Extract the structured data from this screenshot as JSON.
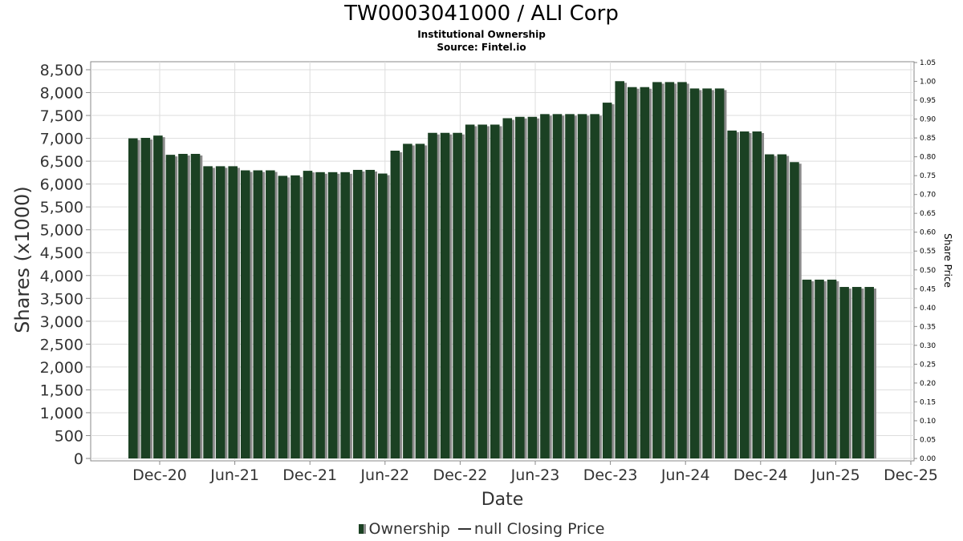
{
  "chart_data": {
    "type": "bar",
    "title": "TW0003041000 / ALI Corp",
    "subtitle_lines": [
      "Institutional Ownership",
      "Source: Fintel.io"
    ],
    "xlabel": "Date",
    "ylabel": "Shares (x1000)",
    "y2label": "Share Price",
    "ylim": [
      0,
      8500
    ],
    "y2lim": [
      0,
      1.05
    ],
    "x_tick_labels": [
      "Dec-20",
      "Jun-21",
      "Dec-21",
      "Jun-22",
      "Dec-22",
      "Jun-23",
      "Dec-23",
      "Jun-24",
      "Dec-24",
      "Jun-25",
      "Dec-25"
    ],
    "y_tick_labels": [
      "0",
      "500",
      "1,000",
      "1,500",
      "2,000",
      "2,500",
      "3,000",
      "3,500",
      "4,000",
      "4,500",
      "5,000",
      "5,500",
      "6,000",
      "6,500",
      "7,000",
      "7,500",
      "8,000",
      "8,500"
    ],
    "y2_tick_labels": [
      "0.00",
      "0.05",
      "0.10",
      "0.15",
      "0.20",
      "0.25",
      "0.30",
      "0.35",
      "0.40",
      "0.45",
      "0.50",
      "0.55",
      "0.60",
      "0.65",
      "0.70",
      "0.75",
      "0.80",
      "0.85",
      "0.90",
      "0.95",
      "1.00",
      "1.05"
    ],
    "grid": true,
    "legend_position": "bottom",
    "colors": {
      "bar": "#1b4123",
      "bar_shadow": "#8a8a8a",
      "grid": "#dddddd",
      "axis": "#888888"
    },
    "series": [
      {
        "name": "Ownership",
        "values": [
          7000,
          7010,
          7060,
          6640,
          6660,
          6660,
          6390,
          6390,
          6390,
          6300,
          6300,
          6300,
          6180,
          6190,
          6290,
          6260,
          6260,
          6260,
          6310,
          6310,
          6230,
          6730,
          6880,
          6880,
          7120,
          7120,
          7120,
          7300,
          7300,
          7300,
          7440,
          7470,
          7470,
          7530,
          7530,
          7530,
          7530,
          7530,
          7780,
          8250,
          8120,
          8120,
          8230,
          8230,
          8230,
          8090,
          8090,
          8090,
          7170,
          7150,
          7150,
          6650,
          6650,
          6480,
          3910,
          3910,
          3910,
          3750,
          3750,
          3750
        ]
      }
    ],
    "legend": {
      "ownership_label": "Ownership",
      "price_label": "null Closing Price"
    }
  }
}
